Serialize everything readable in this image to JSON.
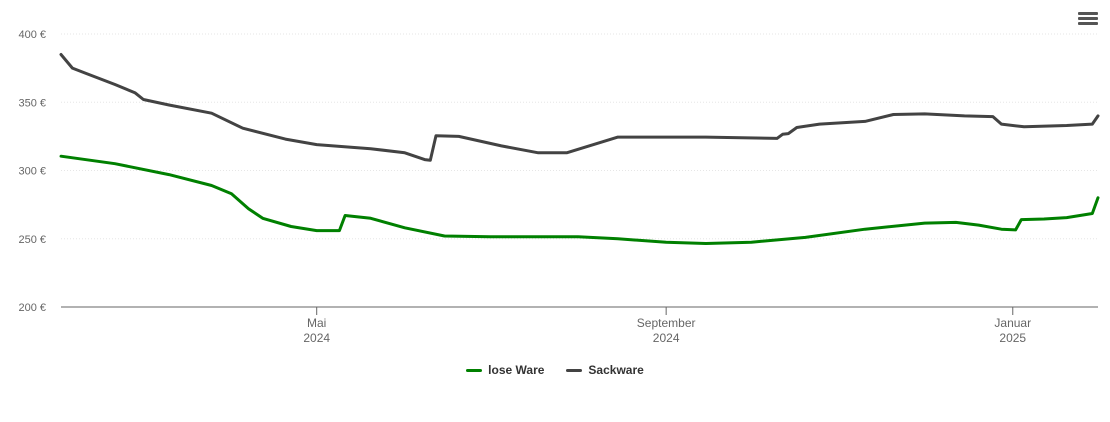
{
  "menu": {
    "icon": "hamburger-menu-icon"
  },
  "chart_data": {
    "type": "line",
    "currency": "€",
    "ylim": [
      200,
      400
    ],
    "yticks": [
      200,
      250,
      300,
      350,
      400
    ],
    "ytick_labels": [
      "200 €",
      "250 €",
      "300 €",
      "350 €",
      "400 €"
    ],
    "xlim": [
      "2024-02-01",
      "2025-01-31"
    ],
    "xticks": [
      {
        "date": "2024-05-01",
        "label1": "Mai",
        "label2": "2024"
      },
      {
        "date": "2024-09-01",
        "label1": "September",
        "label2": "2024"
      },
      {
        "date": "2025-01-01",
        "label1": "Januar",
        "label2": "2025"
      }
    ],
    "grid": true,
    "legend_position": "bottom-center",
    "series": [
      {
        "name": "lose Ware",
        "color": "#008000",
        "points": [
          [
            "2024-02-01",
            310.5
          ],
          [
            "2024-02-20",
            305
          ],
          [
            "2024-03-10",
            297
          ],
          [
            "2024-03-25",
            289
          ],
          [
            "2024-04-01",
            283
          ],
          [
            "2024-04-07",
            272
          ],
          [
            "2024-04-12",
            265
          ],
          [
            "2024-04-22",
            259
          ],
          [
            "2024-05-01",
            256
          ],
          [
            "2024-05-09",
            256
          ],
          [
            "2024-05-11",
            267
          ],
          [
            "2024-05-20",
            265
          ],
          [
            "2024-06-01",
            258
          ],
          [
            "2024-06-15",
            252
          ],
          [
            "2024-07-01",
            251.5
          ],
          [
            "2024-08-01",
            251.5
          ],
          [
            "2024-08-15",
            250
          ],
          [
            "2024-09-01",
            247.5
          ],
          [
            "2024-09-15",
            246.5
          ],
          [
            "2024-10-01",
            247.5
          ],
          [
            "2024-10-20",
            251
          ],
          [
            "2024-11-10",
            257
          ],
          [
            "2024-12-01",
            261.5
          ],
          [
            "2024-12-12",
            262
          ],
          [
            "2024-12-20",
            260
          ],
          [
            "2024-12-28",
            257
          ],
          [
            "2025-01-02",
            256.5
          ],
          [
            "2025-01-04",
            264
          ],
          [
            "2025-01-12",
            264.5
          ],
          [
            "2025-01-20",
            265.5
          ],
          [
            "2025-01-29",
            268.5
          ],
          [
            "2025-01-31",
            280
          ]
        ]
      },
      {
        "name": "Sackware",
        "color": "#434343",
        "points": [
          [
            "2024-02-01",
            385
          ],
          [
            "2024-02-05",
            375
          ],
          [
            "2024-02-10",
            371
          ],
          [
            "2024-02-20",
            363
          ],
          [
            "2024-02-27",
            357
          ],
          [
            "2024-03-01",
            352
          ],
          [
            "2024-03-10",
            348
          ],
          [
            "2024-03-25",
            342
          ],
          [
            "2024-04-05",
            331
          ],
          [
            "2024-04-20",
            323
          ],
          [
            "2024-05-01",
            319
          ],
          [
            "2024-05-20",
            316
          ],
          [
            "2024-06-01",
            313
          ],
          [
            "2024-06-08",
            308
          ],
          [
            "2024-06-10",
            307.5
          ],
          [
            "2024-06-12",
            325.5
          ],
          [
            "2024-06-20",
            325
          ],
          [
            "2024-07-05",
            318
          ],
          [
            "2024-07-18",
            313
          ],
          [
            "2024-07-28",
            313
          ],
          [
            "2024-08-15",
            324.5
          ],
          [
            "2024-08-25",
            324.5
          ],
          [
            "2024-09-15",
            324.5
          ],
          [
            "2024-10-10",
            323.5
          ],
          [
            "2024-10-12",
            326.5
          ],
          [
            "2024-10-14",
            327
          ],
          [
            "2024-10-17",
            331.5
          ],
          [
            "2024-10-25",
            334
          ],
          [
            "2024-11-10",
            336
          ],
          [
            "2024-11-20",
            341
          ],
          [
            "2024-12-01",
            341.5
          ],
          [
            "2024-12-15",
            340
          ],
          [
            "2024-12-25",
            339.5
          ],
          [
            "2024-12-28",
            334
          ],
          [
            "2025-01-05",
            332
          ],
          [
            "2025-01-20",
            333
          ],
          [
            "2025-01-29",
            334
          ],
          [
            "2025-01-31",
            340
          ]
        ]
      }
    ]
  }
}
